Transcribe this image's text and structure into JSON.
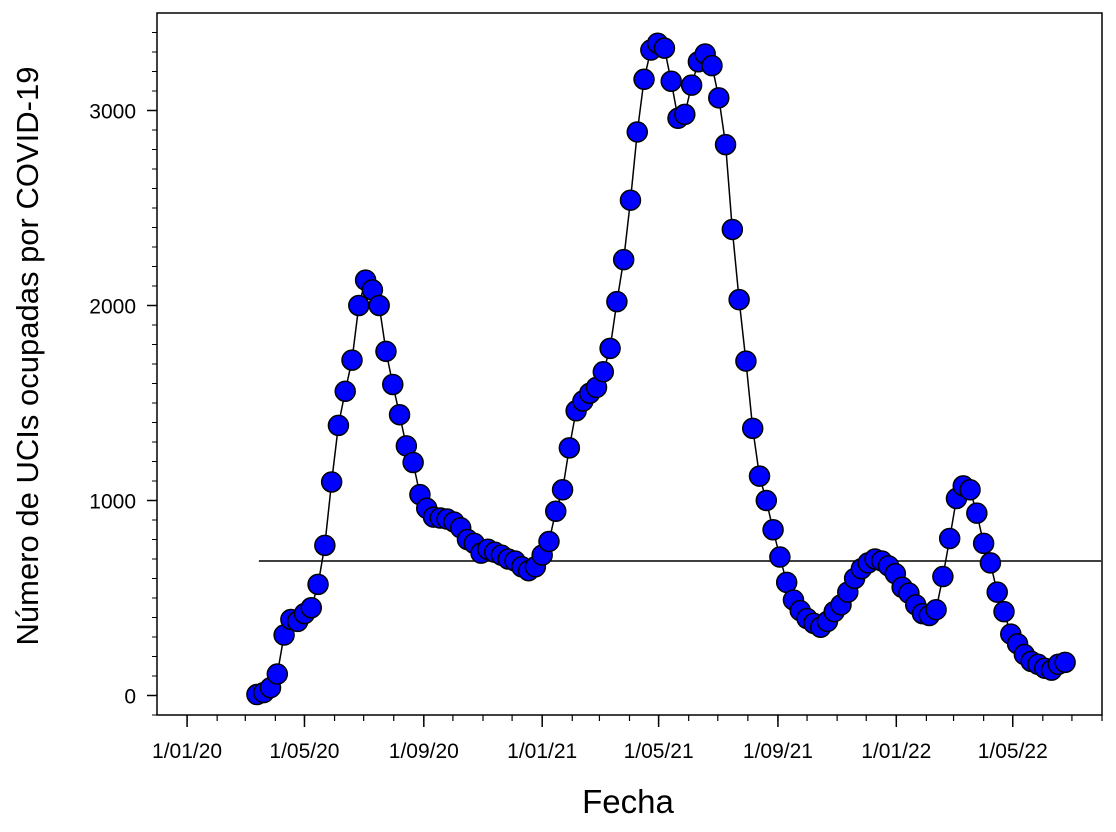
{
  "chart_data": {
    "type": "scatter",
    "title": "",
    "xlabel": "Fecha",
    "ylabel": "Número de UCIs ocupadas por COVID-19",
    "x_date_ticks": [
      {
        "label": "1/01/20",
        "date": "2020-01-01"
      },
      {
        "label": "1/05/20",
        "date": "2020-05-01"
      },
      {
        "label": "1/09/20",
        "date": "2020-09-01"
      },
      {
        "label": "1/01/21",
        "date": "2021-01-01"
      },
      {
        "label": "1/05/21",
        "date": "2021-05-01"
      },
      {
        "label": "1/09/21",
        "date": "2021-09-01"
      },
      {
        "label": "1/01/22",
        "date": "2022-01-01"
      },
      {
        "label": "1/05/22",
        "date": "2022-05-01"
      }
    ],
    "y_ticks": [
      0,
      1000,
      2000,
      3000
    ],
    "xlim": [
      "2019-12-01",
      "2022-08-01"
    ],
    "ylim": [
      -100,
      3500
    ],
    "grid": false,
    "legend": "none",
    "marker_color": "#0000ff",
    "line_color": "#000000",
    "reference_line": {
      "y": 690,
      "x_start": "2020-03-15",
      "x_end": "2022-07-31"
    },
    "points": [
      [
        "2020-03-13",
        5
      ],
      [
        "2020-03-20",
        15
      ],
      [
        "2020-03-27",
        40
      ],
      [
        "2020-04-03",
        110
      ],
      [
        "2020-04-10",
        310
      ],
      [
        "2020-04-17",
        390
      ],
      [
        "2020-04-24",
        380
      ],
      [
        "2020-05-01",
        420
      ],
      [
        "2020-05-08",
        450
      ],
      [
        "2020-05-15",
        570
      ],
      [
        "2020-05-22",
        770
      ],
      [
        "2020-05-29",
        1095
      ],
      [
        "2020-06-05",
        1385
      ],
      [
        "2020-06-12",
        1560
      ],
      [
        "2020-06-19",
        1720
      ],
      [
        "2020-06-26",
        2000
      ],
      [
        "2020-07-03",
        2130
      ],
      [
        "2020-07-10",
        2080
      ],
      [
        "2020-07-17",
        2000
      ],
      [
        "2020-07-24",
        1765
      ],
      [
        "2020-07-31",
        1595
      ],
      [
        "2020-08-07",
        1440
      ],
      [
        "2020-08-14",
        1280
      ],
      [
        "2020-08-21",
        1195
      ],
      [
        "2020-08-28",
        1030
      ],
      [
        "2020-09-04",
        960
      ],
      [
        "2020-09-11",
        915
      ],
      [
        "2020-09-18",
        910
      ],
      [
        "2020-09-25",
        905
      ],
      [
        "2020-10-02",
        890
      ],
      [
        "2020-10-09",
        860
      ],
      [
        "2020-10-16",
        800
      ],
      [
        "2020-10-23",
        780
      ],
      [
        "2020-10-30",
        730
      ],
      [
        "2020-11-06",
        750
      ],
      [
        "2020-11-13",
        735
      ],
      [
        "2020-11-20",
        720
      ],
      [
        "2020-11-27",
        700
      ],
      [
        "2020-12-04",
        690
      ],
      [
        "2020-12-11",
        660
      ],
      [
        "2020-12-18",
        640
      ],
      [
        "2020-12-25",
        660
      ],
      [
        "2021-01-01",
        720
      ],
      [
        "2021-01-08",
        790
      ],
      [
        "2021-01-15",
        945
      ],
      [
        "2021-01-22",
        1055
      ],
      [
        "2021-01-29",
        1270
      ],
      [
        "2021-02-05",
        1460
      ],
      [
        "2021-02-12",
        1510
      ],
      [
        "2021-02-19",
        1550
      ],
      [
        "2021-02-26",
        1580
      ],
      [
        "2021-03-05",
        1660
      ],
      [
        "2021-03-12",
        1780
      ],
      [
        "2021-03-19",
        2020
      ],
      [
        "2021-03-26",
        2235
      ],
      [
        "2021-04-02",
        2540
      ],
      [
        "2021-04-09",
        2890
      ],
      [
        "2021-04-16",
        3160
      ],
      [
        "2021-04-23",
        3310
      ],
      [
        "2021-04-30",
        3345
      ],
      [
        "2021-05-07",
        3320
      ],
      [
        "2021-05-14",
        3150
      ],
      [
        "2021-05-21",
        2960
      ],
      [
        "2021-05-28",
        2980
      ],
      [
        "2021-06-04",
        3130
      ],
      [
        "2021-06-11",
        3250
      ],
      [
        "2021-06-18",
        3290
      ],
      [
        "2021-06-25",
        3230
      ],
      [
        "2021-07-02",
        3065
      ],
      [
        "2021-07-09",
        2825
      ],
      [
        "2021-07-16",
        2390
      ],
      [
        "2021-07-23",
        2030
      ],
      [
        "2021-07-30",
        1715
      ],
      [
        "2021-08-06",
        1370
      ],
      [
        "2021-08-13",
        1125
      ],
      [
        "2021-08-20",
        1000
      ],
      [
        "2021-08-27",
        850
      ],
      [
        "2021-09-03",
        710
      ],
      [
        "2021-09-10",
        580
      ],
      [
        "2021-09-17",
        490
      ],
      [
        "2021-09-24",
        435
      ],
      [
        "2021-10-01",
        395
      ],
      [
        "2021-10-08",
        370
      ],
      [
        "2021-10-15",
        350
      ],
      [
        "2021-10-22",
        380
      ],
      [
        "2021-10-29",
        430
      ],
      [
        "2021-11-05",
        465
      ],
      [
        "2021-11-12",
        530
      ],
      [
        "2021-11-19",
        600
      ],
      [
        "2021-11-26",
        650
      ],
      [
        "2021-12-03",
        680
      ],
      [
        "2021-12-10",
        700
      ],
      [
        "2021-12-17",
        690
      ],
      [
        "2021-12-24",
        665
      ],
      [
        "2021-12-31",
        625
      ],
      [
        "2022-01-07",
        555
      ],
      [
        "2022-01-14",
        525
      ],
      [
        "2022-01-21",
        465
      ],
      [
        "2022-01-28",
        420
      ],
      [
        "2022-02-04",
        410
      ],
      [
        "2022-02-11",
        440
      ],
      [
        "2022-02-18",
        610
      ],
      [
        "2022-02-25",
        805
      ],
      [
        "2022-03-04",
        1010
      ],
      [
        "2022-03-11",
        1075
      ],
      [
        "2022-03-18",
        1055
      ],
      [
        "2022-03-25",
        935
      ],
      [
        "2022-04-01",
        780
      ],
      [
        "2022-04-08",
        680
      ],
      [
        "2022-04-15",
        530
      ],
      [
        "2022-04-22",
        430
      ],
      [
        "2022-04-29",
        315
      ],
      [
        "2022-05-06",
        265
      ],
      [
        "2022-05-13",
        210
      ],
      [
        "2022-05-20",
        175
      ],
      [
        "2022-05-27",
        160
      ],
      [
        "2022-06-03",
        140
      ],
      [
        "2022-06-10",
        130
      ],
      [
        "2022-06-17",
        160
      ],
      [
        "2022-06-24",
        170
      ]
    ]
  }
}
